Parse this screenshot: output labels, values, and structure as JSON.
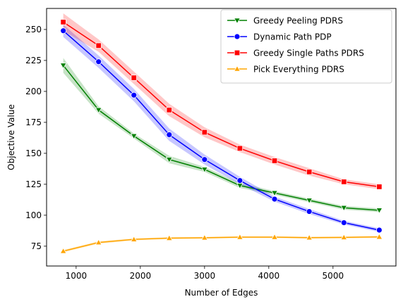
{
  "chart_data": {
    "type": "line",
    "title": "",
    "xlabel": "Number of Edges",
    "ylabel": "Objective Value",
    "xlim": [
      540,
      5980
    ],
    "ylim": [
      59,
      267
    ],
    "xticks": [
      1000,
      2000,
      3000,
      4000,
      5000
    ],
    "yticks": [
      75,
      100,
      125,
      150,
      175,
      200,
      225,
      250
    ],
    "x": [
      800,
      1350,
      1900,
      2450,
      3000,
      3550,
      4090,
      4630,
      5170,
      5720
    ],
    "legend_position": "top-right",
    "series": [
      {
        "name": "Greedy Peeling PDRS",
        "color": "#008000",
        "marker": "triangle-down",
        "values": [
          221,
          185,
          164,
          145,
          137,
          124,
          118,
          112,
          106,
          104
        ],
        "band": [
          6,
          3,
          2,
          3,
          2,
          2,
          1.5,
          1.5,
          1.5,
          1.5
        ]
      },
      {
        "name": "Dynamic Path PDP",
        "color": "#0000ff",
        "marker": "circle",
        "values": [
          249,
          224,
          197,
          165,
          145,
          128,
          113,
          103,
          94,
          88
        ],
        "band": [
          5,
          5,
          5,
          5,
          4,
          3,
          2,
          2,
          1.5,
          1.5
        ]
      },
      {
        "name": "Greedy Single Paths PDRS",
        "color": "#ff0000",
        "marker": "square",
        "values": [
          256,
          237,
          211,
          185,
          167,
          154,
          144,
          135,
          127,
          123
        ],
        "band": [
          7,
          5,
          5,
          5,
          4,
          3,
          3,
          3,
          2,
          2
        ]
      },
      {
        "name": "Pick Everything PDRS",
        "color": "#ffa500",
        "marker": "triangle-up",
        "values": [
          71,
          78,
          80.5,
          81.5,
          81.8,
          82.3,
          82.3,
          81.9,
          82.1,
          82.5
        ],
        "band": [
          1,
          1,
          0.8,
          0.8,
          0.8,
          0.8,
          0.8,
          0.8,
          0.8,
          0.8
        ]
      }
    ]
  }
}
